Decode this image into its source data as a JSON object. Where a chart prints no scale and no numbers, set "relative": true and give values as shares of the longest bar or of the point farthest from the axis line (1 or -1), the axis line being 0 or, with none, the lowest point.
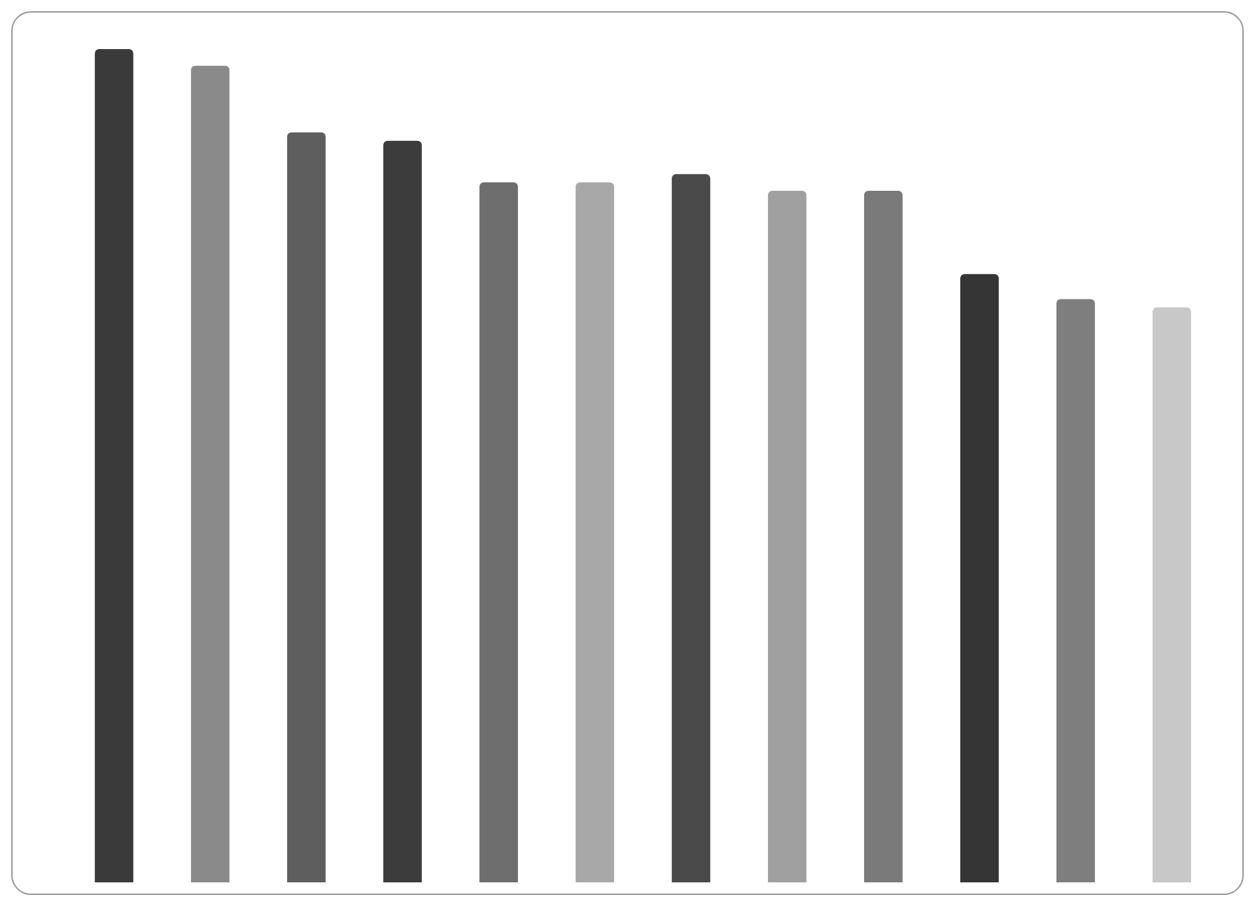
{
  "chart_data": {
    "type": "bar",
    "relative": true,
    "categories": [
      null,
      null,
      null,
      null,
      null,
      null,
      null,
      null,
      null,
      null,
      null,
      null
    ],
    "values": [
      1,
      0.98,
      0.9,
      0.89,
      0.84,
      0.84,
      0.85,
      0.83,
      0.83,
      0.73,
      0.7,
      0.69
    ],
    "colors": [
      "#3a3a3a",
      "#8a8a8a",
      "#5e5e5e",
      "#3c3c3c",
      "#6e6e6e",
      "#a8a8a8",
      "#4a4a4a",
      "#a0a0a0",
      "#7a7a7a",
      "#353535",
      "#7e7e7e",
      "#c8c8c8"
    ]
  }
}
